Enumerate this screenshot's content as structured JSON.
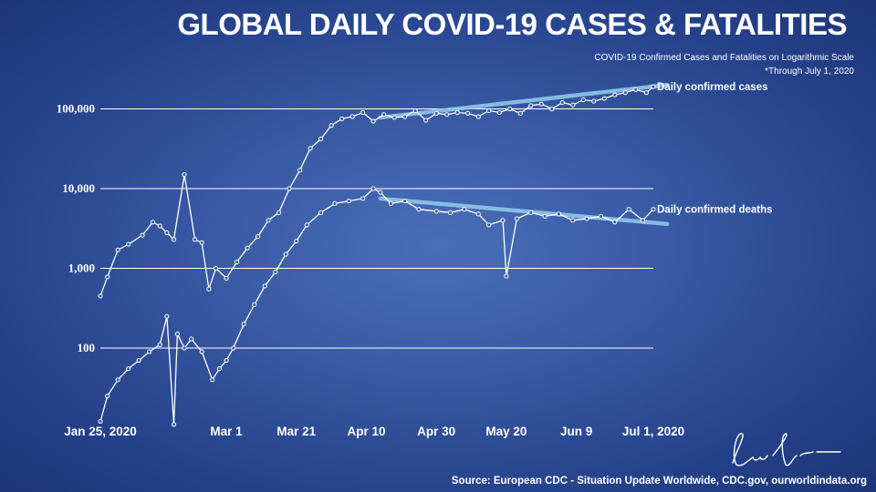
{
  "title": "GLOBAL DAILY COVID-19 CASES & FATALITIES",
  "subtitle": "COVID-19 Confirmed Cases and Fatalities on Logarithmic Scale",
  "note": "*Through July 1, 2020",
  "source": "Source: European CDC - Situation Update Worldwide, CDC.gov, ourworldindata.org",
  "colors": {
    "series_line": "#ffffff",
    "trend_line": "#8ec7ea",
    "gridline": "#ffffff"
  },
  "chart_data": {
    "type": "line",
    "y_scale": "log",
    "ylim": [
      10,
      200000
    ],
    "y_ticks": [
      100,
      1000,
      10000,
      100000
    ],
    "y_tick_labels": [
      "100",
      "1,000",
      "10,000",
      "100,000"
    ],
    "x_tick_labels": [
      "Jan 25, 2020",
      "Mar 1",
      "Mar 21",
      "Apr 10",
      "Apr 30",
      "May 20",
      "Jun 9",
      "Jul 1, 2020"
    ],
    "x_ticks": [
      "2020-01-25",
      "2020-03-01",
      "2020-03-21",
      "2020-04-10",
      "2020-04-30",
      "2020-05-20",
      "2020-06-09",
      "2020-07-01"
    ],
    "x_range": [
      "2020-01-25",
      "2020-07-01"
    ],
    "grid": true,
    "series": [
      {
        "name": "Daily confirmed cases",
        "x": [
          "2020-01-25",
          "2020-01-27",
          "2020-01-30",
          "2020-02-02",
          "2020-02-06",
          "2020-02-09",
          "2020-02-11",
          "2020-02-13",
          "2020-02-15",
          "2020-02-18",
          "2020-02-21",
          "2020-02-23",
          "2020-02-25",
          "2020-02-27",
          "2020-03-01",
          "2020-03-04",
          "2020-03-07",
          "2020-03-10",
          "2020-03-13",
          "2020-03-16",
          "2020-03-19",
          "2020-03-22",
          "2020-03-25",
          "2020-03-28",
          "2020-03-31",
          "2020-04-03",
          "2020-04-06",
          "2020-04-09",
          "2020-04-12",
          "2020-04-15",
          "2020-04-18",
          "2020-04-21",
          "2020-04-24",
          "2020-04-27",
          "2020-04-30",
          "2020-05-03",
          "2020-05-06",
          "2020-05-09",
          "2020-05-12",
          "2020-05-15",
          "2020-05-18",
          "2020-05-21",
          "2020-05-24",
          "2020-05-27",
          "2020-05-30",
          "2020-06-02",
          "2020-06-05",
          "2020-06-08",
          "2020-06-11",
          "2020-06-14",
          "2020-06-17",
          "2020-06-20",
          "2020-06-23",
          "2020-06-26",
          "2020-06-29",
          "2020-07-01"
        ],
        "y": [
          450,
          780,
          1700,
          2000,
          2600,
          3800,
          3400,
          2800,
          2300,
          15000,
          2300,
          2100,
          550,
          1000,
          750,
          1200,
          1800,
          2500,
          4000,
          5000,
          10000,
          17000,
          32000,
          42000,
          62000,
          75000,
          80000,
          90000,
          70000,
          85000,
          78000,
          80000,
          95000,
          72000,
          88000,
          85000,
          90000,
          88000,
          80000,
          95000,
          90000,
          100000,
          88000,
          110000,
          115000,
          100000,
          120000,
          112000,
          130000,
          125000,
          135000,
          150000,
          160000,
          175000,
          160000,
          190000
        ]
      },
      {
        "name": "Daily confirmed deaths",
        "x": [
          "2020-01-25",
          "2020-01-27",
          "2020-01-30",
          "2020-02-02",
          "2020-02-05",
          "2020-02-08",
          "2020-02-11",
          "2020-02-13",
          "2020-02-15",
          "2020-02-16",
          "2020-02-18",
          "2020-02-20",
          "2020-02-23",
          "2020-02-26",
          "2020-02-28",
          "2020-03-01",
          "2020-03-03",
          "2020-03-06",
          "2020-03-09",
          "2020-03-12",
          "2020-03-15",
          "2020-03-18",
          "2020-03-21",
          "2020-03-24",
          "2020-03-28",
          "2020-04-01",
          "2020-04-05",
          "2020-04-09",
          "2020-04-12",
          "2020-04-14",
          "2020-04-17",
          "2020-04-21",
          "2020-04-25",
          "2020-04-30",
          "2020-05-04",
          "2020-05-08",
          "2020-05-12",
          "2020-05-15",
          "2020-05-19",
          "2020-05-20",
          "2020-05-23",
          "2020-05-27",
          "2020-05-31",
          "2020-06-04",
          "2020-06-08",
          "2020-06-12",
          "2020-06-16",
          "2020-06-20",
          "2020-06-24",
          "2020-06-28",
          "2020-07-01"
        ],
        "y": [
          12,
          25,
          40,
          55,
          70,
          90,
          110,
          250,
          11,
          150,
          100,
          130,
          90,
          40,
          55,
          70,
          100,
          200,
          350,
          600,
          900,
          1500,
          2200,
          3500,
          5000,
          6500,
          7000,
          7500,
          10000,
          9000,
          6500,
          7000,
          5500,
          5200,
          5000,
          5500,
          4800,
          3500,
          4000,
          800,
          4200,
          5000,
          4500,
          4800,
          4000,
          4200,
          4500,
          3800,
          5500,
          4000,
          5500
        ]
      }
    ],
    "trend_lines": [
      {
        "series": "Daily confirmed cases",
        "x": [
          "2020-04-14",
          "2020-07-05"
        ],
        "y": [
          78000,
          200000
        ]
      },
      {
        "series": "Daily confirmed deaths",
        "x": [
          "2020-04-14",
          "2020-07-05"
        ],
        "y": [
          7500,
          3600
        ]
      }
    ]
  }
}
